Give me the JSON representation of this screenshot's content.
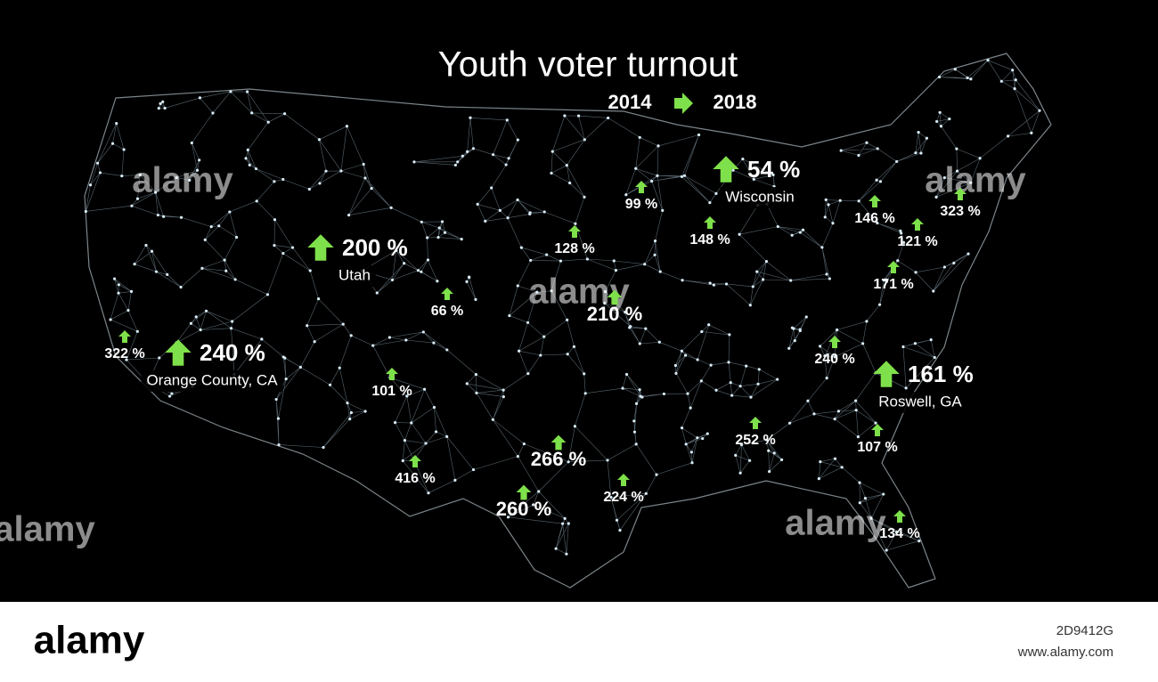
{
  "header": {
    "title": "Youth voter turnout",
    "from_year": "2014",
    "to_year": "2018"
  },
  "markers": [
    {
      "label": "322 %"
    },
    {
      "label": "240 %",
      "place": "Orange County, CA"
    },
    {
      "label": "200 %",
      "place": "Utah"
    },
    {
      "label": "66 %"
    },
    {
      "label": "101 %"
    },
    {
      "label": "416 %"
    },
    {
      "label": "128 %"
    },
    {
      "label": "210 %"
    },
    {
      "label": "266 %"
    },
    {
      "label": "260 %"
    },
    {
      "label": "224 %"
    },
    {
      "label": "99 %"
    },
    {
      "label": "148 %"
    },
    {
      "label": "54 %",
      "place": "Wisconsin"
    },
    {
      "label": "146 %"
    },
    {
      "label": "121 %"
    },
    {
      "label": "323 %"
    },
    {
      "label": "171 %"
    },
    {
      "label": "240 %"
    },
    {
      "label": "161 %",
      "place": "Roswell, GA"
    },
    {
      "label": "107 %"
    },
    {
      "label": "252 %"
    },
    {
      "label": "134 %"
    }
  ],
  "watermark": "alamy",
  "footer": {
    "brand": "alamy",
    "image_id": "2D9412G",
    "url": "www.alamy.com"
  }
}
